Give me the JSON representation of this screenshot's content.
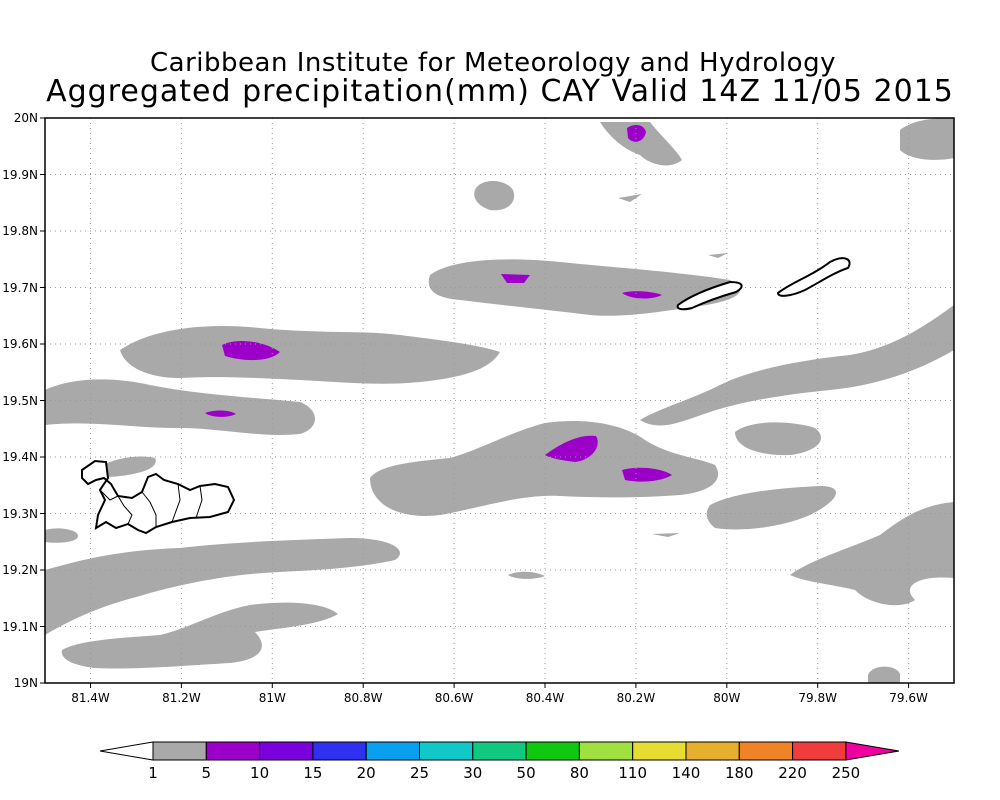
{
  "title": {
    "line1": "Caribbean Institute for Meteorology and Hydrology",
    "line2": "Aggregated precipitation(mm) CAY Valid 14Z 11/05 2015"
  },
  "axes": {
    "y_ticks": [
      "20N",
      "19.9N",
      "19.8N",
      "19.7N",
      "19.6N",
      "19.5N",
      "19.4N",
      "19.3N",
      "19.2N",
      "19.1N",
      "19N"
    ],
    "x_ticks": [
      "81.4W",
      "81.2W",
      "81W",
      "80.8W",
      "80.6W",
      "80.4W",
      "80.2W",
      "80W",
      "79.8W",
      "79.6W"
    ]
  },
  "colorbar": {
    "labels": [
      "1",
      "5",
      "10",
      "15",
      "20",
      "25",
      "30",
      "50",
      "80",
      "110",
      "140",
      "180",
      "220",
      "250"
    ],
    "colors": [
      "#a9a9a9",
      "#9c00c8",
      "#7a00dd",
      "#3030f0",
      "#0aa0f0",
      "#10c8c8",
      "#10c880",
      "#10c810",
      "#a0e040",
      "#e6dc32",
      "#e6af2d",
      "#f08228",
      "#f03c3c",
      "#f000a0"
    ],
    "low_color": "#ffffff"
  },
  "map": {
    "extent": {
      "lon_west": 81.5,
      "lon_east": 79.5,
      "lat_south": 19.0,
      "lat_north": 20.0
    },
    "fill_colors": {
      "gray": "#a9a9a9",
      "purple": "#9c00c8"
    }
  }
}
